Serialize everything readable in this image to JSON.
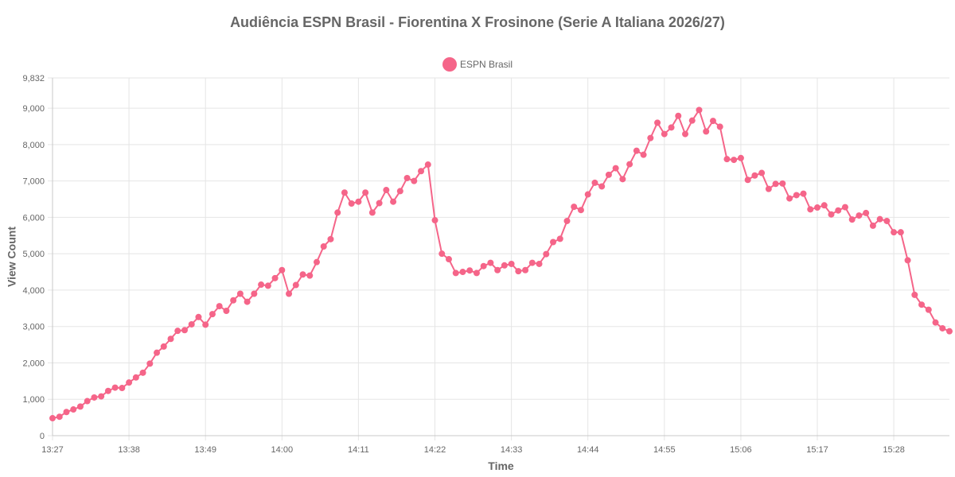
{
  "chart_data": {
    "type": "line",
    "title": "Audiência ESPN Brasil - Fiorentina X Frosinone (Serie A Italiana 2026/27)",
    "xlabel": "Time",
    "ylabel": "View Count",
    "ylim": [
      0,
      9832
    ],
    "y_ticks": [
      "0",
      "1,000",
      "2,000",
      "3,000",
      "4,000",
      "5,000",
      "6,000",
      "7,000",
      "8,000",
      "9,000",
      "9,832"
    ],
    "y_tick_values": [
      0,
      1000,
      2000,
      3000,
      4000,
      5000,
      6000,
      7000,
      8000,
      9000,
      9832
    ],
    "x_ticks": [
      "13:27",
      "13:38",
      "13:49",
      "14:00",
      "14:11",
      "14:22",
      "14:33",
      "14:44",
      "14:55",
      "15:06",
      "15:17",
      "15:28"
    ],
    "x_tick_index_step": 11,
    "legend_position": "top-center",
    "grid": true,
    "series": [
      {
        "name": "ESPN Brasil",
        "color": "#f56589",
        "values": [
          480,
          520,
          650,
          720,
          800,
          950,
          1050,
          1080,
          1230,
          1320,
          1310,
          1460,
          1600,
          1730,
          1980,
          2280,
          2450,
          2660,
          2880,
          2900,
          3060,
          3260,
          3050,
          3340,
          3560,
          3430,
          3720,
          3900,
          3680,
          3900,
          4150,
          4120,
          4330,
          4550,
          3900,
          4140,
          4430,
          4400,
          4770,
          5200,
          5400,
          6130,
          6680,
          6380,
          6430,
          6680,
          6130,
          6390,
          6750,
          6430,
          6720,
          7080,
          7000,
          7270,
          7450,
          5920,
          5000,
          4850,
          4470,
          4500,
          4540,
          4470,
          4660,
          4750,
          4550,
          4680,
          4720,
          4520,
          4550,
          4750,
          4720,
          4990,
          5320,
          5410,
          5900,
          6290,
          6200,
          6630,
          6950,
          6850,
          7170,
          7350,
          7050,
          7460,
          7830,
          7720,
          8180,
          8600,
          8290,
          8470,
          8790,
          8290,
          8660,
          8950,
          8360,
          8650,
          8490,
          7600,
          7580,
          7630,
          7030,
          7150,
          7220,
          6780,
          6920,
          6930,
          6520,
          6610,
          6650,
          6220,
          6270,
          6330,
          6080,
          6190,
          6280,
          5940,
          6050,
          6120,
          5770,
          5950,
          5900,
          5590,
          5590,
          4820,
          3870,
          3600,
          3460,
          3110,
          2950,
          2870
        ]
      }
    ]
  }
}
